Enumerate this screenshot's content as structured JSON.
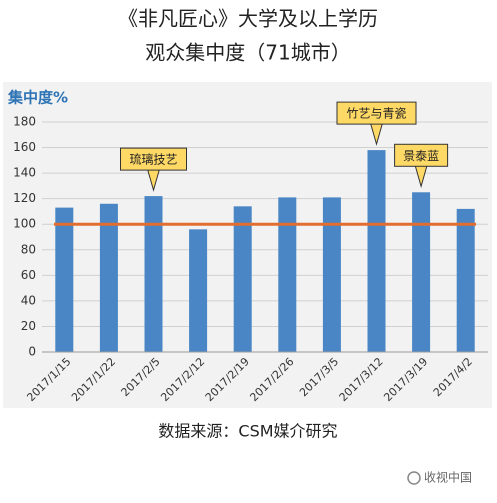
{
  "chart_data": {
    "type": "bar",
    "title": "《非凡匠心》大学及以上学历",
    "subtitle": "观众集中度（71城市）",
    "y_label": "集中度%",
    "categories": [
      "2017/1/15",
      "2017/1/22",
      "2017/2/5",
      "2017/2/12",
      "2017/2/19",
      "2017/2/26",
      "2017/3/5",
      "2017/3/12",
      "2017/3/19",
      "2017/4/2"
    ],
    "values": [
      113,
      116,
      122,
      96,
      114,
      121,
      121,
      158,
      125,
      112
    ],
    "color": "#4a86c5",
    "ylim": [
      0,
      180
    ],
    "yticks": [
      0,
      20,
      40,
      60,
      80,
      100,
      120,
      140,
      160,
      180
    ],
    "grid": true,
    "reference_line": {
      "value": 100,
      "color": "#e36c2f"
    },
    "annotations": [
      {
        "text": "琉璃技艺",
        "category": "2017/2/5"
      },
      {
        "text": "竹艺与青瓷",
        "category": "2017/3/12"
      },
      {
        "text": "景泰蓝",
        "category": "2017/3/19"
      }
    ],
    "source": "数据来源：CSM媒介研究",
    "watermark": "收视中国"
  }
}
